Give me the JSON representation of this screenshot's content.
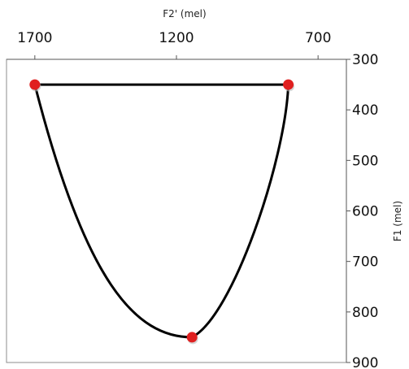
{
  "chart_data": {
    "type": "line",
    "title": "",
    "xlabel": "F2' (mel)",
    "ylabel": "F1 (mel)",
    "x_axis_position": "top",
    "y_axis_position": "right",
    "x_reversed": true,
    "y_reversed": true,
    "xlim": [
      600,
      1800
    ],
    "ylim": [
      300,
      900
    ],
    "x_ticks": [
      1700,
      1200,
      700
    ],
    "x_tick_labels": [
      "1700",
      "1200",
      "700"
    ],
    "y_ticks": [
      300,
      400,
      500,
      600,
      700,
      800,
      900
    ],
    "y_tick_labels": [
      "300",
      "400",
      "500",
      "600",
      "700",
      "800",
      "900"
    ],
    "grid": false,
    "legend": "none",
    "series": [
      {
        "points": [
          {
            "x": 1700,
            "y": 350
          },
          {
            "x": 805,
            "y": 350
          },
          {
            "x": 1145,
            "y": 850
          }
        ],
        "marker_color": "#e02020",
        "line_color": "#000000"
      }
    ]
  }
}
